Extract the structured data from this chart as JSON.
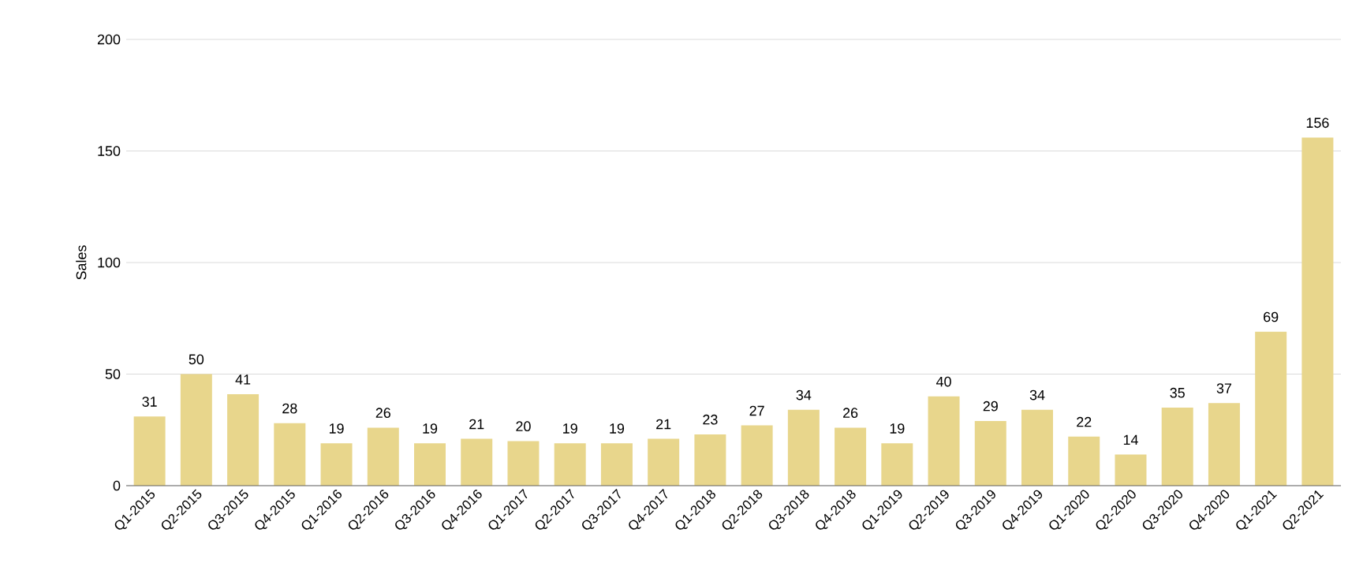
{
  "chart_data": {
    "type": "bar",
    "ylabel": "Sales",
    "categories": [
      "Q1-2015",
      "Q2-2015",
      "Q3-2015",
      "Q4-2015",
      "Q1-2016",
      "Q2-2016",
      "Q3-2016",
      "Q4-2016",
      "Q1-2017",
      "Q2-2017",
      "Q3-2017",
      "Q4-2017",
      "Q1-2018",
      "Q2-2018",
      "Q3-2018",
      "Q4-2018",
      "Q1-2019",
      "Q2-2019",
      "Q3-2019",
      "Q4-2019",
      "Q1-2020",
      "Q2-2020",
      "Q3-2020",
      "Q4-2020",
      "Q1-2021",
      "Q2-2021"
    ],
    "values": [
      31,
      50,
      41,
      28,
      19,
      26,
      19,
      21,
      20,
      19,
      19,
      21,
      23,
      27,
      34,
      26,
      19,
      40,
      29,
      34,
      22,
      14,
      35,
      37,
      69,
      156
    ],
    "color": "#e8d68c",
    "ylim": [
      0,
      200
    ],
    "yticks": [
      0,
      50,
      100,
      150,
      200
    ],
    "grid": "y",
    "data_labels": true
  }
}
